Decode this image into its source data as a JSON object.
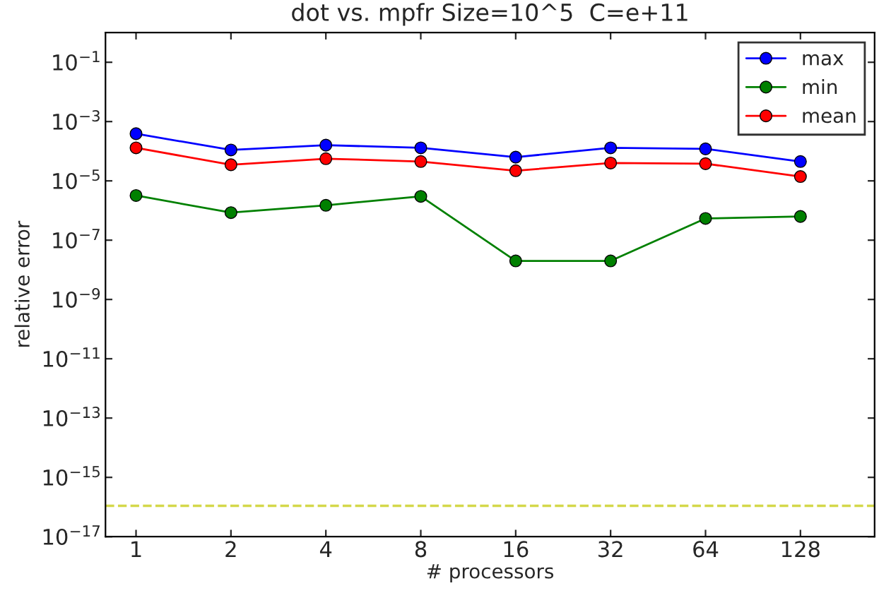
{
  "chart_data": {
    "type": "line",
    "title": "dot vs. mpfr Size=10^5  C=e+11",
    "xlabel": "# processors",
    "ylabel": "relative error",
    "x": [
      1,
      2,
      4,
      8,
      16,
      32,
      64,
      128
    ],
    "log": "xy",
    "xlim": [
      0.8,
      220
    ],
    "xticks": [
      1,
      2,
      4,
      8,
      16,
      32,
      64,
      128
    ],
    "ylim": [
      1e-17,
      1
    ],
    "yticks": [
      {
        "value": 0.1,
        "label": "10$^{−1}$"
      },
      {
        "value": 0.001,
        "label": "10$^{−3}$"
      },
      {
        "value": 1e-05,
        "label": "10$^{−5}$"
      },
      {
        "value": 1e-07,
        "label": "10$^{−7}$"
      },
      {
        "value": 1e-09,
        "label": "10$^{−9}$"
      },
      {
        "value": 1e-11,
        "label": "10$^{−11}$"
      },
      {
        "value": 1e-13,
        "label": "10$^{−13}$"
      },
      {
        "value": 1e-15,
        "label": "10$^{−15}$"
      },
      {
        "value": 1e-17,
        "label": "10$^{−17}$"
      }
    ],
    "marker": "circle",
    "line_style": "solid",
    "grid": false,
    "legend": "top right",
    "series": [
      {
        "name": "max",
        "color": "#0000ff",
        "values": [
          0.00039,
          0.00011,
          0.00016,
          0.00013,
          6.3e-05,
          0.00013,
          0.00012,
          4.5e-05
        ]
      },
      {
        "name": "min",
        "color": "#008000",
        "values": [
          3.2e-06,
          8.5e-07,
          1.5e-06,
          3e-06,
          2e-08,
          2e-08,
          5.4e-07,
          6.3e-07
        ]
      },
      {
        "name": "mean",
        "color": "#ff0000",
        "values": [
          0.00013,
          3.5e-05,
          5.6e-05,
          4.5e-05,
          2.2e-05,
          4e-05,
          3.8e-05,
          1.4e-05
        ]
      }
    ],
    "ref_lines": [
      {
        "axis": "y",
        "value": 1.1e-16,
        "color": "#d4d84a",
        "line_style": "dashed"
      }
    ]
  }
}
